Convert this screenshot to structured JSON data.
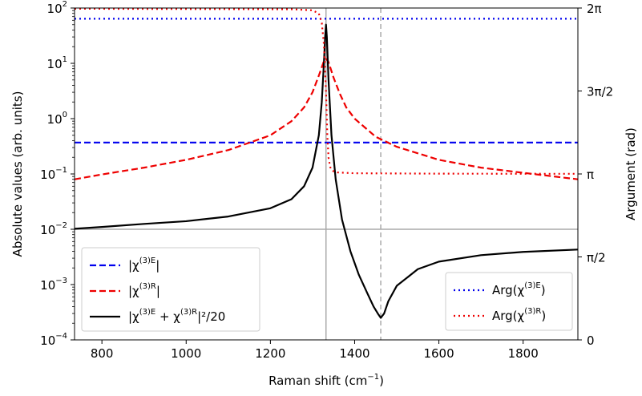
{
  "chart_data": {
    "type": "line",
    "xlabel": "Raman shift (cm",
    "xlabel_sup": "−1",
    "xlabel_tail": ")",
    "ylabel_left": "Absolute values (arb. units)",
    "ylabel_right": "Argument (rad)",
    "xlim": [
      735,
      1930
    ],
    "ylim_left": [
      0.0001,
      100
    ],
    "ylim_right": [
      0,
      6.2832
    ],
    "left_scale": "log",
    "right_scale": "linear",
    "x_ticks": [
      {
        "value": 800,
        "label": "800"
      },
      {
        "value": 1000,
        "label": "1000"
      },
      {
        "value": 1200,
        "label": "1200"
      },
      {
        "value": 1400,
        "label": "1400"
      },
      {
        "value": 1600,
        "label": "1600"
      },
      {
        "value": 1800,
        "label": "1800"
      }
    ],
    "left_ticks": [
      {
        "exp": -4,
        "base": "10",
        "sup": "−4"
      },
      {
        "exp": -3,
        "base": "10",
        "sup": "−3"
      },
      {
        "exp": -2,
        "base": "10",
        "sup": "−2"
      },
      {
        "exp": -1,
        "base": "10",
        "sup": "−1"
      },
      {
        "exp": 0,
        "base": "10",
        "sup": "0"
      },
      {
        "exp": 1,
        "base": "10",
        "sup": "1"
      },
      {
        "exp": 2,
        "base": "10",
        "sup": "2"
      }
    ],
    "right_ticks": [
      {
        "value": 0,
        "label": "0"
      },
      {
        "value": 1.5708,
        "label": "π/2"
      },
      {
        "value": 3.1416,
        "label": "π"
      },
      {
        "value": 4.7124,
        "label": "3π/2"
      },
      {
        "value": 6.2832,
        "label": "2π"
      }
    ],
    "reference_lines": [
      {
        "axis": "x",
        "value": 1332,
        "style": "solid",
        "color": "#aaaaaa"
      },
      {
        "axis": "x",
        "value": 1462,
        "style": "dashed",
        "color": "#aaaaaa"
      },
      {
        "axis": "y_left",
        "value": 0.01,
        "style": "solid",
        "color": "#aaaaaa"
      }
    ],
    "series": [
      {
        "name": "|χ(3)E|",
        "axis": "left",
        "color": "#0000ee",
        "style": "dashed",
        "x": [
          735,
          1930
        ],
        "y": [
          0.37,
          0.37
        ]
      },
      {
        "name": "|χ(3)R|",
        "axis": "left",
        "color": "#ee0000",
        "style": "dashed",
        "x": [
          735,
          800,
          900,
          1000,
          1100,
          1200,
          1250,
          1280,
          1300,
          1315,
          1322,
          1327,
          1332,
          1337,
          1342,
          1350,
          1365,
          1380,
          1400,
          1450,
          1500,
          1600,
          1700,
          1800,
          1930
        ],
        "y": [
          0.08,
          0.098,
          0.13,
          0.18,
          0.27,
          0.5,
          0.9,
          1.6,
          3.0,
          6.0,
          8.5,
          11.0,
          12.0,
          11.0,
          8.5,
          5.5,
          2.8,
          1.6,
          1.0,
          0.47,
          0.31,
          0.18,
          0.13,
          0.105,
          0.08
        ]
      },
      {
        "name": "|χ(3)E + χ(3)R|²/20",
        "axis": "left",
        "color": "#000000",
        "style": "solid",
        "x": [
          735,
          800,
          900,
          1000,
          1100,
          1200,
          1250,
          1280,
          1300,
          1315,
          1322,
          1327,
          1330,
          1332,
          1334,
          1338,
          1345,
          1355,
          1370,
          1390,
          1410,
          1430,
          1445,
          1455,
          1462,
          1470,
          1480,
          1500,
          1550,
          1600,
          1700,
          1800,
          1930
        ],
        "y": [
          0.0102,
          0.011,
          0.0125,
          0.014,
          0.017,
          0.024,
          0.035,
          0.06,
          0.13,
          0.5,
          2.0,
          10.0,
          30.0,
          50.0,
          30.0,
          5.0,
          0.5,
          0.08,
          0.015,
          0.004,
          0.0015,
          0.0007,
          0.0004,
          0.0003,
          0.00025,
          0.0003,
          0.0005,
          0.00095,
          0.0019,
          0.0026,
          0.0034,
          0.0039,
          0.0043
        ]
      },
      {
        "name": "Arg(χ(3)E)",
        "axis": "right",
        "color": "#0000ee",
        "style": "dotted",
        "x": [
          735,
          1930
        ],
        "y": [
          6.08,
          6.08
        ]
      },
      {
        "name": "Arg(χ(3)R)",
        "axis": "right",
        "color": "#ee0000",
        "style": "dotted",
        "x": [
          735,
          1250,
          1300,
          1315,
          1322,
          1327,
          1332,
          1335,
          1338,
          1342,
          1348,
          1360,
          1400,
          1600,
          1930
        ],
        "y": [
          6.27,
          6.26,
          6.24,
          6.18,
          6.0,
          5.6,
          4.71,
          3.9,
          3.45,
          3.27,
          3.2,
          3.17,
          3.155,
          3.147,
          3.144
        ]
      }
    ],
    "legend_left": [
      {
        "prefix": "|χ",
        "sup": "(3)E",
        "suffix": "|",
        "color": "#0000ee",
        "style": "dashed"
      },
      {
        "prefix": "|χ",
        "sup": "(3)R",
        "suffix": "|",
        "color": "#ee0000",
        "style": "dashed"
      },
      {
        "prefix": "|χ",
        "sup": "(3)E",
        "mid": " + χ",
        "sup2": "(3)R",
        "suffix": "|²/20",
        "color": "#000000",
        "style": "solid"
      }
    ],
    "legend_right": [
      {
        "prefix": "Arg(χ",
        "sup": "(3)E",
        "suffix": ")",
        "color": "#0000ee",
        "style": "dotted"
      },
      {
        "prefix": "Arg(χ",
        "sup": "(3)R",
        "suffix": ")",
        "color": "#ee0000",
        "style": "dotted"
      }
    ],
    "legend_left_position": "lower-left",
    "legend_right_position": "lower-right",
    "grid": false
  }
}
